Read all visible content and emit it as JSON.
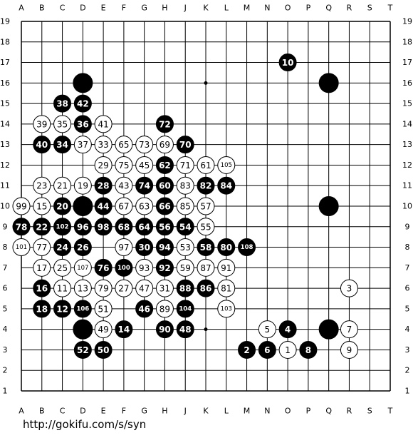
{
  "board": {
    "columns": [
      "A",
      "B",
      "C",
      "D",
      "E",
      "F",
      "G",
      "H",
      "J",
      "K",
      "L",
      "M",
      "N",
      "O",
      "P",
      "Q",
      "R",
      "S",
      "T"
    ],
    "rows": [
      19,
      18,
      17,
      16,
      15,
      14,
      13,
      12,
      11,
      10,
      9,
      8,
      7,
      6,
      5,
      4,
      3,
      2,
      1
    ],
    "stones": [
      {
        "point": "O17",
        "color": "black",
        "label": "10"
      },
      {
        "point": "D16",
        "color": "black"
      },
      {
        "point": "Q16",
        "color": "black"
      },
      {
        "point": "C15",
        "color": "black",
        "label": "38"
      },
      {
        "point": "D15",
        "color": "black",
        "label": "42"
      },
      {
        "point": "B14",
        "color": "white",
        "label": "39"
      },
      {
        "point": "C14",
        "color": "white",
        "label": "35"
      },
      {
        "point": "D14",
        "color": "black",
        "label": "36"
      },
      {
        "point": "E14",
        "color": "white",
        "label": "41"
      },
      {
        "point": "H14",
        "color": "black",
        "label": "72"
      },
      {
        "point": "B13",
        "color": "black",
        "label": "40"
      },
      {
        "point": "C13",
        "color": "black",
        "label": "34"
      },
      {
        "point": "D13",
        "color": "white",
        "label": "37"
      },
      {
        "point": "E13",
        "color": "white",
        "label": "33"
      },
      {
        "point": "F13",
        "color": "white",
        "label": "65"
      },
      {
        "point": "G13",
        "color": "white",
        "label": "73"
      },
      {
        "point": "H13",
        "color": "white",
        "label": "69"
      },
      {
        "point": "J13",
        "color": "black",
        "label": "70"
      },
      {
        "point": "E12",
        "color": "white",
        "label": "29"
      },
      {
        "point": "F12",
        "color": "white",
        "label": "75"
      },
      {
        "point": "G12",
        "color": "white",
        "label": "45"
      },
      {
        "point": "H12",
        "color": "black",
        "label": "62"
      },
      {
        "point": "J12",
        "color": "white",
        "label": "71"
      },
      {
        "point": "K12",
        "color": "white",
        "label": "61"
      },
      {
        "point": "L12",
        "color": "white",
        "label": "105"
      },
      {
        "point": "B11",
        "color": "white",
        "label": "23"
      },
      {
        "point": "C11",
        "color": "white",
        "label": "21"
      },
      {
        "point": "D11",
        "color": "white",
        "label": "19"
      },
      {
        "point": "E11",
        "color": "black",
        "label": "28"
      },
      {
        "point": "F11",
        "color": "white",
        "label": "43"
      },
      {
        "point": "G11",
        "color": "black",
        "label": "74"
      },
      {
        "point": "H11",
        "color": "black",
        "label": "60"
      },
      {
        "point": "J11",
        "color": "white",
        "label": "83"
      },
      {
        "point": "K11",
        "color": "black",
        "label": "82"
      },
      {
        "point": "L11",
        "color": "black",
        "label": "84"
      },
      {
        "point": "A10",
        "color": "white",
        "label": "99"
      },
      {
        "point": "B10",
        "color": "white",
        "label": "15"
      },
      {
        "point": "C10",
        "color": "black",
        "label": "20"
      },
      {
        "point": "D10",
        "color": "black"
      },
      {
        "point": "E10",
        "color": "black",
        "label": "44"
      },
      {
        "point": "F10",
        "color": "white",
        "label": "67"
      },
      {
        "point": "G10",
        "color": "white",
        "label": "63"
      },
      {
        "point": "H10",
        "color": "black",
        "label": "66"
      },
      {
        "point": "J10",
        "color": "white",
        "label": "85"
      },
      {
        "point": "K10",
        "color": "white",
        "label": "57"
      },
      {
        "point": "Q10",
        "color": "black"
      },
      {
        "point": "A9",
        "color": "black",
        "label": "78"
      },
      {
        "point": "B9",
        "color": "black",
        "label": "22"
      },
      {
        "point": "C9",
        "color": "black",
        "label": "102"
      },
      {
        "point": "D9",
        "color": "black",
        "label": "96"
      },
      {
        "point": "E9",
        "color": "black",
        "label": "98"
      },
      {
        "point": "F9",
        "color": "black",
        "label": "68"
      },
      {
        "point": "G9",
        "color": "black",
        "label": "64"
      },
      {
        "point": "H9",
        "color": "black",
        "label": "56"
      },
      {
        "point": "J9",
        "color": "black",
        "label": "54"
      },
      {
        "point": "K9",
        "color": "white",
        "label": "55"
      },
      {
        "point": "A8",
        "color": "white",
        "label": "101"
      },
      {
        "point": "B8",
        "color": "white",
        "label": "77"
      },
      {
        "point": "C8",
        "color": "black",
        "label": "24"
      },
      {
        "point": "D8",
        "color": "black",
        "label": "26"
      },
      {
        "point": "F8",
        "color": "white",
        "label": "97"
      },
      {
        "point": "G8",
        "color": "black",
        "label": "30"
      },
      {
        "point": "H8",
        "color": "black",
        "label": "94"
      },
      {
        "point": "J8",
        "color": "white",
        "label": "53"
      },
      {
        "point": "K8",
        "color": "black",
        "label": "58"
      },
      {
        "point": "L8",
        "color": "black",
        "label": "80"
      },
      {
        "point": "M8",
        "color": "black",
        "label": "108"
      },
      {
        "point": "B7",
        "color": "white",
        "label": "17"
      },
      {
        "point": "C7",
        "color": "white",
        "label": "25"
      },
      {
        "point": "D7",
        "color": "white",
        "label": "107"
      },
      {
        "point": "E7",
        "color": "black",
        "label": "76"
      },
      {
        "point": "F7",
        "color": "black",
        "label": "100"
      },
      {
        "point": "G7",
        "color": "white",
        "label": "93"
      },
      {
        "point": "H7",
        "color": "black",
        "label": "92"
      },
      {
        "point": "J7",
        "color": "white",
        "label": "59"
      },
      {
        "point": "K7",
        "color": "white",
        "label": "87"
      },
      {
        "point": "L7",
        "color": "white",
        "label": "91"
      },
      {
        "point": "B6",
        "color": "black",
        "label": "16"
      },
      {
        "point": "C6",
        "color": "white",
        "label": "11"
      },
      {
        "point": "D6",
        "color": "white",
        "label": "13"
      },
      {
        "point": "E6",
        "color": "white",
        "label": "79"
      },
      {
        "point": "F6",
        "color": "white",
        "label": "27"
      },
      {
        "point": "G6",
        "color": "white",
        "label": "47"
      },
      {
        "point": "H6",
        "color": "white",
        "label": "31"
      },
      {
        "point": "J6",
        "color": "black",
        "label": "88"
      },
      {
        "point": "K6",
        "color": "black",
        "label": "86"
      },
      {
        "point": "L6",
        "color": "white",
        "label": "81"
      },
      {
        "point": "R6",
        "color": "white",
        "label": "3"
      },
      {
        "point": "B5",
        "color": "black",
        "label": "18"
      },
      {
        "point": "C5",
        "color": "black",
        "label": "12"
      },
      {
        "point": "D5",
        "color": "black",
        "label": "106"
      },
      {
        "point": "E5",
        "color": "white",
        "label": "51"
      },
      {
        "point": "G5",
        "color": "black",
        "label": "46"
      },
      {
        "point": "H5",
        "color": "white",
        "label": "89"
      },
      {
        "point": "J5",
        "color": "black",
        "label": "104"
      },
      {
        "point": "L5",
        "color": "white",
        "label": "103"
      },
      {
        "point": "D4",
        "color": "black"
      },
      {
        "point": "E4",
        "color": "white",
        "label": "49"
      },
      {
        "point": "F4",
        "color": "black",
        "label": "14"
      },
      {
        "point": "H4",
        "color": "black",
        "label": "90"
      },
      {
        "point": "J4",
        "color": "black",
        "label": "48"
      },
      {
        "point": "N4",
        "color": "white",
        "label": "5"
      },
      {
        "point": "O4",
        "color": "black",
        "label": "4"
      },
      {
        "point": "Q4",
        "color": "black"
      },
      {
        "point": "R4",
        "color": "white",
        "label": "7"
      },
      {
        "point": "D3",
        "color": "black",
        "label": "52"
      },
      {
        "point": "E3",
        "color": "black",
        "label": "50"
      },
      {
        "point": "M3",
        "color": "black",
        "label": "2"
      },
      {
        "point": "N3",
        "color": "black",
        "label": "6"
      },
      {
        "point": "O3",
        "color": "white",
        "label": "1"
      },
      {
        "point": "P3",
        "color": "black",
        "label": "8"
      },
      {
        "point": "R3",
        "color": "white",
        "label": "9"
      }
    ]
  },
  "footer": {
    "url": "http://gokifu.com/s/syn"
  }
}
